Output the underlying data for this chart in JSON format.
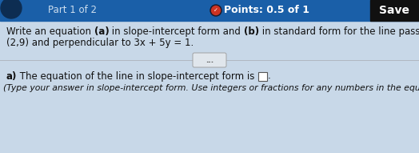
{
  "header_bg": "#1a5fa8",
  "header_text_left": "Part 1 of 2",
  "header_points_text": "Points: 0.5 of 1",
  "header_save_text": "Save",
  "header_save_bg": "#111111",
  "body_bg": "#c8d8e8",
  "body_text_line1a": "Write an equation ",
  "body_text_line1b": "(a)",
  "body_text_line1c": " in slope-intercept form and ",
  "body_text_line1d": "(b)",
  "body_text_line1e": " in standard form for the line passing through",
  "body_text_line2": "(2,9) and perpendicular to 3x + 5y = 1.",
  "divider_color": "#b0b8c0",
  "dots_text": "...",
  "footer_label_a": "a)",
  "footer_line1_pre": " The equation of the line in slope-intercept form is ",
  "footer_line2": "(Type your answer in slope-intercept form. Use integers or fractions for any numbers in the equation.)",
  "text_color": "#111111",
  "font_size_body": 8.5,
  "font_size_footer_label": 8.5,
  "font_size_footer2": 7.8,
  "font_size_header": 8.5
}
